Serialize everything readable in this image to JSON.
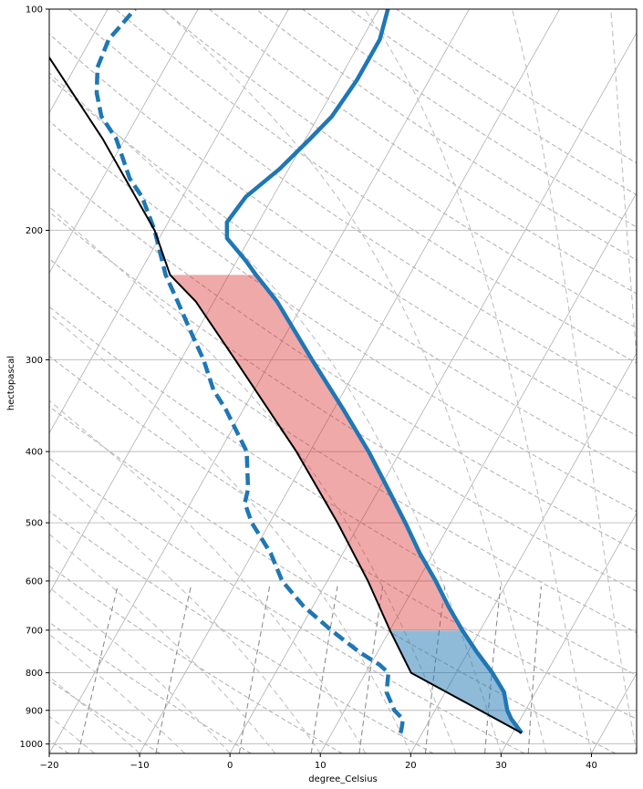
{
  "chart_data": {
    "type": "line",
    "title": "",
    "xlabel": "degree_Celsius",
    "ylabel": "hectopascal",
    "xlim": [
      -20,
      45
    ],
    "ylim_hPa": [
      1030,
      100
    ],
    "y_scale": "log",
    "skew_T": true,
    "grid": true,
    "x_ticks": [
      -20,
      -10,
      0,
      10,
      20,
      30,
      40
    ],
    "x_tick_labels": [
      "−20",
      "−10",
      "0",
      "10",
      "20",
      "30",
      "40"
    ],
    "y_ticks": [
      100,
      200,
      300,
      400,
      500,
      600,
      700,
      800,
      900,
      1000
    ],
    "y_tick_labels": [
      "100",
      "200",
      "300",
      "400",
      "500",
      "600",
      "700",
      "800",
      "900",
      "1000"
    ],
    "series": [
      {
        "role": "temperature",
        "style": "solid",
        "color": "#1f77b4",
        "points": [
          {
            "p": 966,
            "t": 31.0
          },
          {
            "p": 925,
            "t": 29.0
          },
          {
            "p": 900,
            "t": 28.0
          },
          {
            "p": 850,
            "t": 26.5
          },
          {
            "p": 800,
            "t": 24.0
          },
          {
            "p": 750,
            "t": 21.0
          },
          {
            "p": 700,
            "t": 18.0
          },
          {
            "p": 650,
            "t": 15.0
          },
          {
            "p": 600,
            "t": 12.0
          },
          {
            "p": 550,
            "t": 8.5
          },
          {
            "p": 500,
            "t": 5.0
          },
          {
            "p": 450,
            "t": 1.0
          },
          {
            "p": 400,
            "t": -3.5
          },
          {
            "p": 350,
            "t": -9.0
          },
          {
            "p": 300,
            "t": -15.5
          },
          {
            "p": 250,
            "t": -23.0
          },
          {
            "p": 230,
            "t": -27.0
          },
          {
            "p": 220,
            "t": -29.0
          },
          {
            "p": 205,
            "t": -32.5
          },
          {
            "p": 195,
            "t": -33.5
          },
          {
            "p": 180,
            "t": -33.0
          },
          {
            "p": 165,
            "t": -31.0
          },
          {
            "p": 150,
            "t": -29.5
          },
          {
            "p": 140,
            "t": -28.5
          },
          {
            "p": 125,
            "t": -28.0
          },
          {
            "p": 110,
            "t": -28.0
          },
          {
            "p": 100,
            "t": -29.0
          }
        ]
      },
      {
        "role": "dewpoint",
        "style": "dashed",
        "color": "#1f77b4",
        "points": [
          {
            "p": 966,
            "t": 17.6
          },
          {
            "p": 950,
            "t": 17.4
          },
          {
            "p": 925,
            "t": 17.0
          },
          {
            "p": 900,
            "t": 15.5
          },
          {
            "p": 850,
            "t": 13.5
          },
          {
            "p": 800,
            "t": 12.5
          },
          {
            "p": 780,
            "t": 11.0
          },
          {
            "p": 750,
            "t": 8.0
          },
          {
            "p": 700,
            "t": 3.5
          },
          {
            "p": 650,
            "t": -1.0
          },
          {
            "p": 600,
            "t": -5.0
          },
          {
            "p": 550,
            "t": -8.0
          },
          {
            "p": 500,
            "t": -12.0
          },
          {
            "p": 470,
            "t": -14.0
          },
          {
            "p": 450,
            "t": -14.5
          },
          {
            "p": 400,
            "t": -17.0
          },
          {
            "p": 350,
            "t": -22.0
          },
          {
            "p": 330,
            "t": -24.5
          },
          {
            "p": 300,
            "t": -27.5
          },
          {
            "p": 280,
            "t": -30.0
          },
          {
            "p": 250,
            "t": -34.0
          },
          {
            "p": 230,
            "t": -37.0
          },
          {
            "p": 200,
            "t": -41.0
          },
          {
            "p": 180,
            "t": -44.5
          },
          {
            "p": 170,
            "t": -47.0
          },
          {
            "p": 150,
            "t": -51.0
          },
          {
            "p": 140,
            "t": -54.0
          },
          {
            "p": 130,
            "t": -56.0
          },
          {
            "p": 120,
            "t": -57.5
          },
          {
            "p": 110,
            "t": -58.0
          },
          {
            "p": 105,
            "t": -57.5
          },
          {
            "p": 100,
            "t": -57.0
          }
        ]
      },
      {
        "role": "parcel_profile",
        "style": "solid",
        "color": "#000000",
        "points": [
          {
            "p": 966,
            "t": 31.0
          },
          {
            "p": 800,
            "t": 15.0
          },
          {
            "p": 700,
            "t": 10.0
          },
          {
            "p": 600,
            "t": 4.5
          },
          {
            "p": 500,
            "t": -2.5
          },
          {
            "p": 400,
            "t": -11.5
          },
          {
            "p": 300,
            "t": -24.0
          },
          {
            "p": 250,
            "t": -32.0
          },
          {
            "p": 230,
            "t": -36.5
          },
          {
            "p": 200,
            "t": -41.0
          },
          {
            "p": 150,
            "t": -52.5
          },
          {
            "p": 100,
            "t": -70.0
          }
        ]
      }
    ],
    "shading": [
      {
        "role": "CIN",
        "color": "#1f77b4",
        "opacity": 0.5,
        "p_range": [
          966,
          700
        ]
      },
      {
        "role": "CAPE",
        "color": "#d62728",
        "opacity": 0.4,
        "p_range": [
          700,
          230
        ]
      }
    ]
  }
}
